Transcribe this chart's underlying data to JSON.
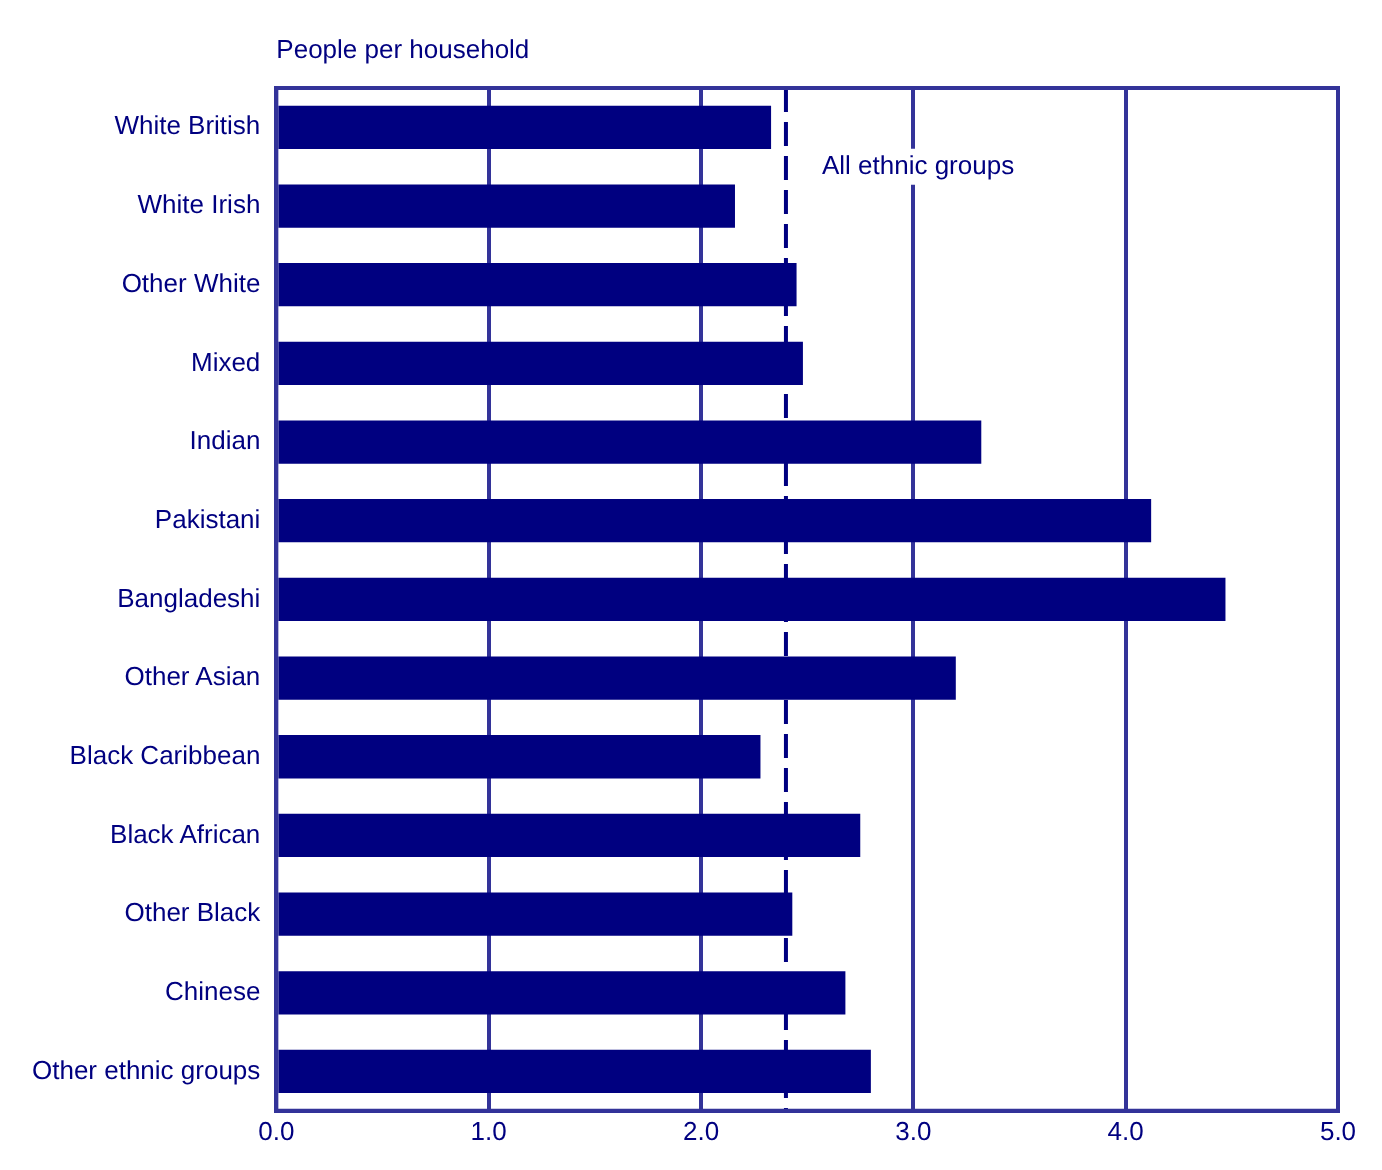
{
  "chart_data": {
    "type": "bar",
    "orientation": "horizontal",
    "xlabel": "People per household",
    "categories": [
      "White British",
      "White Irish",
      "Other White",
      "Mixed",
      "Indian",
      "Pakistani",
      "Bangladeshi",
      "Other Asian",
      "Black Caribbean",
      "Black African",
      "Other Black",
      "Chinese",
      "Other ethnic groups"
    ],
    "values": [
      2.33,
      2.16,
      2.45,
      2.48,
      3.32,
      4.12,
      4.47,
      3.2,
      2.28,
      2.75,
      2.43,
      2.68,
      2.8
    ],
    "color": "#000080",
    "xlim": [
      0,
      5
    ],
    "xticks": [
      {
        "value": 0,
        "label": "0.0"
      },
      {
        "value": 1,
        "label": "1.0"
      },
      {
        "value": 2,
        "label": "2.0"
      },
      {
        "value": 3,
        "label": "3.0"
      },
      {
        "value": 4,
        "label": "4.0"
      },
      {
        "value": 5,
        "label": "5.0"
      }
    ],
    "ref_lines": [
      {
        "axis": "x",
        "value": 2.4,
        "label": "All ethnic groups",
        "line_style": "dashed",
        "color": "#000080"
      }
    ],
    "grid": "x",
    "legend": false
  }
}
